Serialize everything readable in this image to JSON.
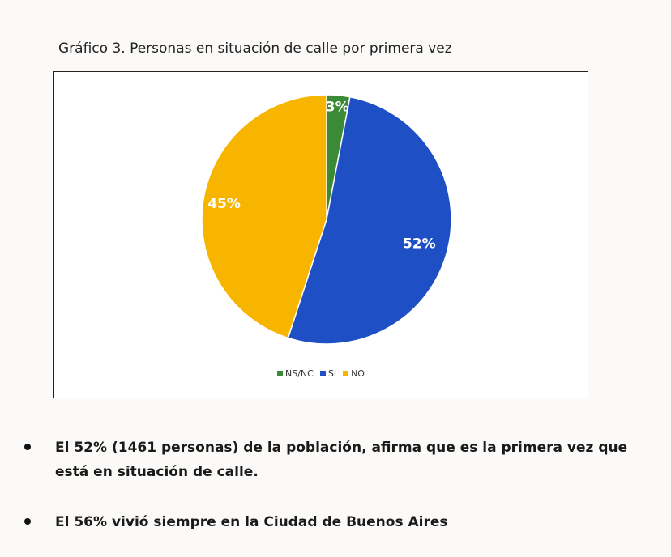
{
  "caption": "Gráfico 3. Personas en situación de calle por primera vez",
  "chart_data": {
    "type": "pie",
    "categories": [
      "NS/NC",
      "SI",
      "NO"
    ],
    "values": [
      3,
      52,
      45
    ],
    "labels": [
      "3%",
      "52%",
      "45%"
    ],
    "colors": [
      "#3a8a36",
      "#1f4fc4",
      "#f7b500"
    ],
    "legend_position": "bottom"
  },
  "bullets": [
    {
      "text": "El 52% (1461 personas) de la población, afirma que es la primera vez que está en situación de calle."
    },
    {
      "text": "El 56% vivió siempre en la Ciudad de Buenos Aires"
    }
  ]
}
